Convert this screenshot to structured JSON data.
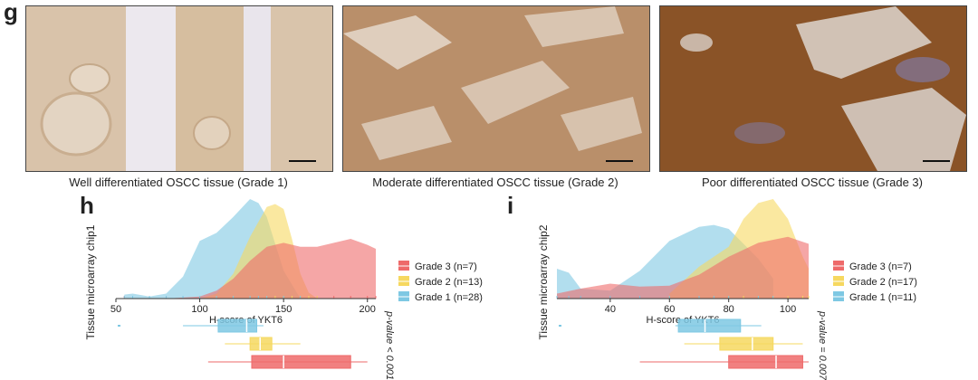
{
  "panel_g": {
    "letter": "g",
    "images": [
      {
        "caption": "Well differentiated OSCC tissue (Grade 1)"
      },
      {
        "caption": "Moderate differentiated OSCC tissue (Grade 2)"
      },
      {
        "caption": "Poor differentiated OSCC tissue (Grade 3)"
      }
    ]
  },
  "colors": {
    "grade1": "#7ec8e3",
    "grade2": "#f6d860",
    "grade3": "#ee6a6a"
  },
  "chart_data": [
    {
      "type": "density",
      "panel": "h",
      "ylabel": "Tissue microarray chip1",
      "xlabel": "H-score of YKT6",
      "xlim": [
        50,
        205
      ],
      "xticks": [
        50,
        100,
        150,
        200
      ],
      "pvalue": "p-value < 0.001",
      "legend_position": "right",
      "series": [
        {
          "name": "Grade 3 (n=7)",
          "color": "#ee6a6a",
          "x": [
            55,
            80,
            100,
            110,
            120,
            130,
            140,
            150,
            160,
            170,
            180,
            190,
            200,
            205
          ],
          "density": [
            0.0,
            0.0,
            0.02,
            0.08,
            0.2,
            0.38,
            0.52,
            0.56,
            0.52,
            0.52,
            0.56,
            0.6,
            0.54,
            0.5
          ],
          "box": {
            "min": 105,
            "q1": 131,
            "median": 150,
            "q3": 190,
            "max": 200
          }
        },
        {
          "name": "Grade 2 (n=13)",
          "color": "#f6d860",
          "x": [
            100,
            110,
            120,
            130,
            140,
            145,
            150,
            155,
            160,
            165,
            170
          ],
          "density": [
            0.0,
            0.05,
            0.25,
            0.62,
            0.92,
            0.95,
            0.9,
            0.6,
            0.25,
            0.06,
            0.0
          ],
          "box": {
            "min": 115,
            "q1": 130,
            "median": 136,
            "q3": 143,
            "max": 160
          }
        },
        {
          "name": "Grade 1 (n=28)",
          "color": "#7ec8e3",
          "x": [
            55,
            60,
            70,
            80,
            90,
            100,
            110,
            120,
            130,
            135,
            140,
            150,
            160
          ],
          "density": [
            0.04,
            0.05,
            0.02,
            0.05,
            0.22,
            0.58,
            0.66,
            0.82,
            1.0,
            0.96,
            0.82,
            0.28,
            0.0
          ],
          "box": {
            "min": 90,
            "q1": 111,
            "median": 128,
            "q3": 134,
            "max": 138
          }
        }
      ]
    },
    {
      "type": "density",
      "panel": "i",
      "ylabel": "Tissue microarray chip2",
      "xlabel": "H-score of YKT6",
      "xlim": [
        22,
        107
      ],
      "xticks": [
        40,
        60,
        80,
        100
      ],
      "pvalue": "p-value = 0.007",
      "legend_position": "right",
      "series": [
        {
          "name": "Grade 3 (n=7)",
          "color": "#ee6a6a",
          "x": [
            22,
            30,
            40,
            50,
            60,
            70,
            80,
            90,
            100,
            107
          ],
          "density": [
            0.05,
            0.1,
            0.15,
            0.12,
            0.13,
            0.24,
            0.42,
            0.56,
            0.62,
            0.55
          ],
          "box": {
            "min": 50,
            "q1": 80,
            "median": 96,
            "q3": 105,
            "max": 107
          }
        },
        {
          "name": "Grade 2 (n=17)",
          "color": "#f6d860",
          "x": [
            60,
            70,
            80,
            85,
            90,
            95,
            100,
            105,
            107
          ],
          "density": [
            0.05,
            0.32,
            0.52,
            0.8,
            0.96,
            1.0,
            0.8,
            0.42,
            0.3
          ],
          "box": {
            "min": 65,
            "q1": 77,
            "median": 88,
            "q3": 95,
            "max": 105
          }
        },
        {
          "name": "Grade 1 (n=11)",
          "color": "#7ec8e3",
          "x": [
            22,
            26,
            30,
            40,
            50,
            60,
            70,
            75,
            80,
            90,
            95
          ],
          "density": [
            0.3,
            0.26,
            0.1,
            0.08,
            0.28,
            0.58,
            0.72,
            0.74,
            0.7,
            0.4,
            0.2
          ],
          "box": {
            "min": 62,
            "q1": 63,
            "median": 72,
            "q3": 84,
            "max": 91
          }
        }
      ]
    }
  ]
}
